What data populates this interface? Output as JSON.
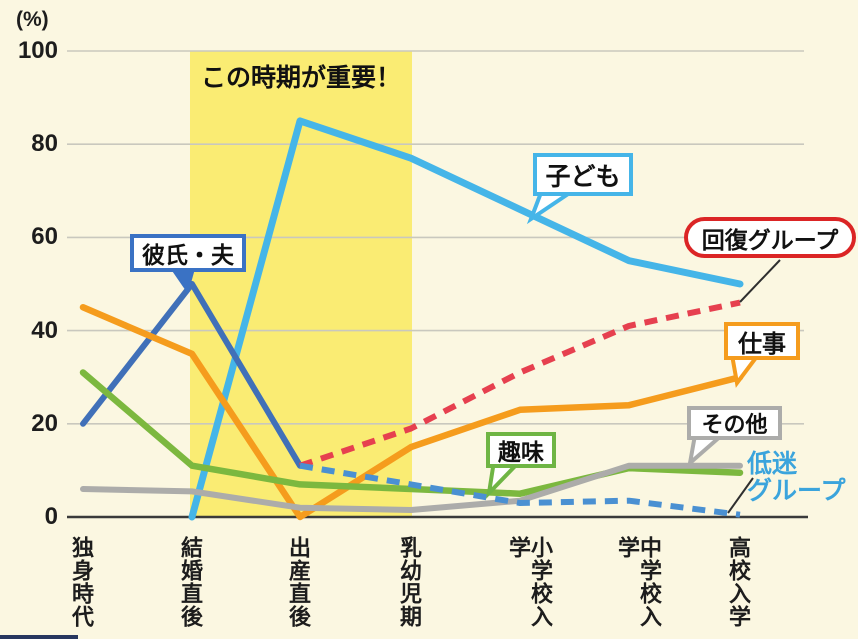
{
  "page": {
    "background_color": "#FBF7E1",
    "corner_bar_color": "#27375f"
  },
  "axis": {
    "percent_label": "(%)",
    "y_tick_labels": [
      "0",
      "20",
      "40",
      "60",
      "80",
      "100"
    ]
  },
  "highlight_banner": {
    "label": "この時期が重要！",
    "color": "#FAEC73"
  },
  "callouts": {
    "kodomo": {
      "label": "子ども",
      "border_color": "#45B5E8"
    },
    "kareshi": {
      "label": "彼氏・夫",
      "border_color": "#3A72C4"
    },
    "kaifuku": {
      "label": "回復グループ",
      "border_color": "#DB2525"
    },
    "shigoto": {
      "label": "仕事",
      "border_color": "#F59C1D"
    },
    "sonota": {
      "label": "その他",
      "border_color": "#ACACAA"
    },
    "shumi": {
      "label": "趣味",
      "border_color": "#6FB544"
    },
    "teimei": {
      "label_line1": "低迷",
      "label_line2": "グループ",
      "text_color": "#3BA4DC"
    }
  },
  "chart_data": {
    "type": "line",
    "title": "",
    "ylabel": "(%)",
    "ylim": [
      0,
      100
    ],
    "y_ticks": [
      0,
      20,
      40,
      60,
      80,
      100
    ],
    "grid": true,
    "legend_position": "inline-callouts",
    "categories": [
      "独身時代",
      "結婚直後",
      "出産直後",
      "乳幼児期",
      "小学校入学",
      "中学校入学",
      "高校入学"
    ],
    "highlight_region": {
      "from_category": "結婚直後",
      "to_category": "乳幼児期",
      "label": "この時期が重要！"
    },
    "series": [
      {
        "name": "子ども",
        "slug": "kodomo",
        "color": "#45B5E8",
        "style": "solid",
        "line_width": 7,
        "start_index": 1,
        "values": [
          0,
          85,
          77,
          66,
          55,
          50
        ]
      },
      {
        "name": "彼氏・夫",
        "slug": "kareshi",
        "color": "#4070B8",
        "style": "solid",
        "line_width": 6,
        "start_index": 0,
        "values": [
          20,
          50,
          11
        ]
      },
      {
        "name": "仕事",
        "slug": "shigoto",
        "color": "#F59C1D",
        "style": "solid",
        "line_width": 6.5,
        "start_index": 0,
        "values": [
          45,
          35,
          0,
          15,
          23,
          24,
          30
        ]
      },
      {
        "name": "趣味",
        "slug": "shumi",
        "color": "#7CB83F",
        "style": "solid",
        "line_width": 6.5,
        "start_index": 0,
        "values": [
          31,
          11,
          7,
          6,
          5,
          10.5,
          9.5
        ]
      },
      {
        "name": "その他",
        "slug": "sonota",
        "color": "#ACACAA",
        "style": "solid",
        "line_width": 6,
        "start_index": 0,
        "values": [
          6,
          5.5,
          2,
          1.5,
          3.5,
          11,
          11
        ]
      },
      {
        "name": "回復グループ",
        "slug": "kaifuku",
        "color": "#E6404F",
        "style": "dashed",
        "line_width": 6,
        "start_index": 2,
        "values": [
          11,
          19,
          31,
          41,
          46
        ]
      },
      {
        "name": "低迷グループ",
        "slug": "teimei",
        "color": "#4A90D2",
        "style": "dashed",
        "line_width": 6,
        "start_index": 2,
        "values": [
          11,
          7,
          3,
          3.5,
          0.5
        ]
      }
    ]
  }
}
